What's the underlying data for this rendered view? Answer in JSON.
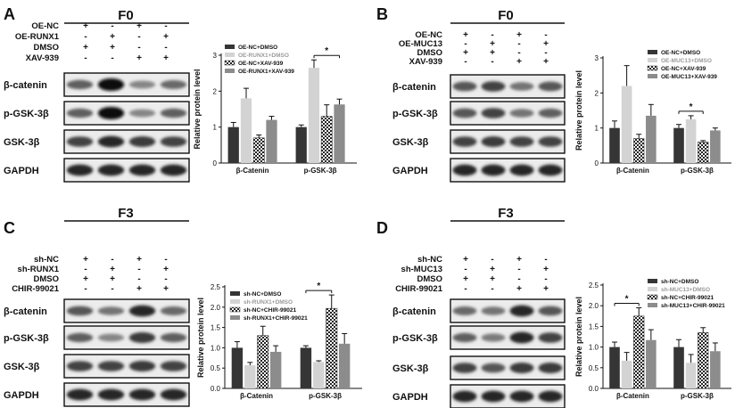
{
  "panels": [
    {
      "letter": "A",
      "stage": "F0",
      "treatments": [
        {
          "label": "OE-NC",
          "signs": [
            "+",
            "-",
            "+",
            "-"
          ]
        },
        {
          "label": "OE-RUNX1",
          "signs": [
            "-",
            "+",
            "-",
            "+"
          ]
        },
        {
          "label": "DMSO",
          "signs": [
            "+",
            "+",
            "-",
            "-"
          ]
        },
        {
          "label": "XAV-939",
          "signs": [
            "-",
            "-",
            "+",
            "+"
          ]
        }
      ],
      "blots": [
        "β-catenin",
        "p-GSK-3β",
        "GSK-3β",
        "GAPDH"
      ]
    },
    {
      "letter": "B",
      "stage": "F0",
      "treatments": [
        {
          "label": "OE-NC",
          "signs": [
            "+",
            "-",
            "+",
            "-"
          ]
        },
        {
          "label": "OE-MUC13",
          "signs": [
            "-",
            "+",
            "-",
            "+"
          ]
        },
        {
          "label": "DMSO",
          "signs": [
            "+",
            "+",
            "-",
            "-"
          ]
        },
        {
          "label": "XAV-939",
          "signs": [
            "-",
            "-",
            "+",
            "+"
          ]
        }
      ],
      "blots": [
        "β-catenin",
        "p-GSK-3β",
        "GSK-3β",
        "GAPDH"
      ]
    },
    {
      "letter": "C",
      "stage": "F3",
      "treatments": [
        {
          "label": "sh-NC",
          "signs": [
            "+",
            "-",
            "+",
            "-"
          ]
        },
        {
          "label": "sh-RUNX1",
          "signs": [
            "-",
            "+",
            "-",
            "+"
          ]
        },
        {
          "label": "DMSO",
          "signs": [
            "+",
            "+",
            "-",
            "-"
          ]
        },
        {
          "label": "CHIR-99021",
          "signs": [
            "-",
            "-",
            "+",
            "+"
          ]
        }
      ],
      "blots": [
        "β-catenin",
        "p-GSK-3β",
        "GSK-3β",
        "GAPDH"
      ]
    },
    {
      "letter": "D",
      "stage": "F3",
      "treatments": [
        {
          "label": "sh-NC",
          "signs": [
            "+",
            "-",
            "+",
            "-"
          ]
        },
        {
          "label": "sh-MUC13",
          "signs": [
            "-",
            "+",
            "-",
            "+"
          ]
        },
        {
          "label": "DMSO",
          "signs": [
            "+",
            "+",
            "-",
            "-"
          ]
        },
        {
          "label": "CHIR-99021",
          "signs": [
            "-",
            "-",
            "+",
            "+"
          ]
        }
      ],
      "blots": [
        "β-catenin",
        "p-GSK-3β",
        "GSK-3β",
        "GAPDH"
      ]
    }
  ],
  "series_styles": [
    {
      "fill": "#353535",
      "pattern": "solid"
    },
    {
      "fill": "#d3d3d3",
      "pattern": "solid"
    },
    {
      "fill": "#ffffff",
      "pattern": "checker"
    },
    {
      "fill": "#8c8c8c",
      "pattern": "solid"
    }
  ],
  "chart_data": [
    {
      "panel": "A",
      "type": "bar",
      "ylabel": "Relative protein level",
      "categories": [
        "β-Catenin",
        "p-GSK-3β"
      ],
      "ylim": [
        0,
        3
      ],
      "yticks": [
        "0",
        "1",
        "2",
        "3"
      ],
      "legend_position": "top",
      "series": [
        {
          "name": "OE-NC+DMSO",
          "values": [
            1.0,
            1.0
          ],
          "errors": [
            0.13,
            0.06
          ]
        },
        {
          "name": "OE-RUNX1+DMSO",
          "values": [
            1.8,
            2.65
          ],
          "errors": [
            0.28,
            0.22
          ]
        },
        {
          "name": "OE-NC+XAV-939",
          "values": [
            0.7,
            1.3
          ],
          "errors": [
            0.08,
            0.32
          ]
        },
        {
          "name": "OE-RUNX1+XAV-939",
          "values": [
            1.2,
            1.63
          ],
          "errors": [
            0.1,
            0.15
          ]
        }
      ],
      "significance": [
        {
          "category": "p-GSK-3β",
          "from_series": 1,
          "to_series": 3,
          "label": "*"
        }
      ]
    },
    {
      "panel": "B",
      "type": "bar",
      "ylabel": "Relative protein level",
      "categories": [
        "β-Catenin",
        "p-GSK-3β"
      ],
      "ylim": [
        0,
        3
      ],
      "yticks": [
        "0",
        "1",
        "2",
        "3"
      ],
      "legend_position": "top-right",
      "series": [
        {
          "name": "OE-NC+DMSO",
          "values": [
            1.0,
            1.0
          ],
          "errors": [
            0.2,
            0.1
          ]
        },
        {
          "name": "OE-MUC13+DMSO",
          "values": [
            2.2,
            1.25
          ],
          "errors": [
            0.58,
            0.1
          ]
        },
        {
          "name": "OE-NC+XAV-939",
          "values": [
            0.7,
            0.6
          ],
          "errors": [
            0.12,
            0.04
          ]
        },
        {
          "name": "OE-MUC13+XAV-939",
          "values": [
            1.35,
            0.93
          ],
          "errors": [
            0.32,
            0.07
          ]
        }
      ],
      "significance": [
        {
          "category": "p-GSK-3β",
          "from_series": 0,
          "to_series": 2,
          "label": "*"
        }
      ]
    },
    {
      "panel": "C",
      "type": "bar",
      "ylabel": "Relative protein level",
      "categories": [
        "β-Catenin",
        "p-GSK-3β"
      ],
      "ylim": [
        0,
        2.5
      ],
      "yticks": [
        "0.0",
        "0.5",
        "1.0",
        "1.5",
        "2.0",
        "2.5"
      ],
      "legend_position": "top",
      "series": [
        {
          "name": "sh-NC+DMSO",
          "values": [
            1.0,
            1.0
          ],
          "errors": [
            0.15,
            0.05
          ]
        },
        {
          "name": "sh-RUNX1+DMSO",
          "values": [
            0.57,
            0.65
          ],
          "errors": [
            0.07,
            0.03
          ]
        },
        {
          "name": "sh-NC+CHIR-99021",
          "values": [
            1.3,
            1.97
          ],
          "errors": [
            0.23,
            0.33
          ]
        },
        {
          "name": "sh-RUNX1+CHIR-99021",
          "values": [
            0.9,
            1.1
          ],
          "errors": [
            0.15,
            0.25
          ]
        }
      ],
      "significance": [
        {
          "category": "p-GSK-3β",
          "from_series": 0,
          "to_series": 2,
          "label": "*"
        }
      ]
    },
    {
      "panel": "D",
      "type": "bar",
      "ylabel": "Relative protein level",
      "categories": [
        "β-Catenin",
        "p-GSK-3β"
      ],
      "ylim": [
        0,
        2.5
      ],
      "yticks": [
        "0.0",
        "0.5",
        "1.0",
        "1.5",
        "2.0",
        "2.5"
      ],
      "legend_position": "top-right",
      "series": [
        {
          "name": "sh-NC+DMSO",
          "values": [
            1.0,
            1.0
          ],
          "errors": [
            0.12,
            0.18
          ]
        },
        {
          "name": "sh-MUC13+DMSO",
          "values": [
            0.67,
            0.62
          ],
          "errors": [
            0.2,
            0.2
          ]
        },
        {
          "name": "sh-NC+CHIR-99021",
          "values": [
            1.75,
            1.35
          ],
          "errors": [
            0.2,
            0.12
          ]
        },
        {
          "name": "sh-MUC13+CHIR-99021",
          "values": [
            1.17,
            0.9
          ],
          "errors": [
            0.25,
            0.2
          ]
        }
      ],
      "significance": [
        {
          "category": "β-Catenin",
          "from_series": 0,
          "to_series": 2,
          "label": "*"
        }
      ]
    }
  ]
}
